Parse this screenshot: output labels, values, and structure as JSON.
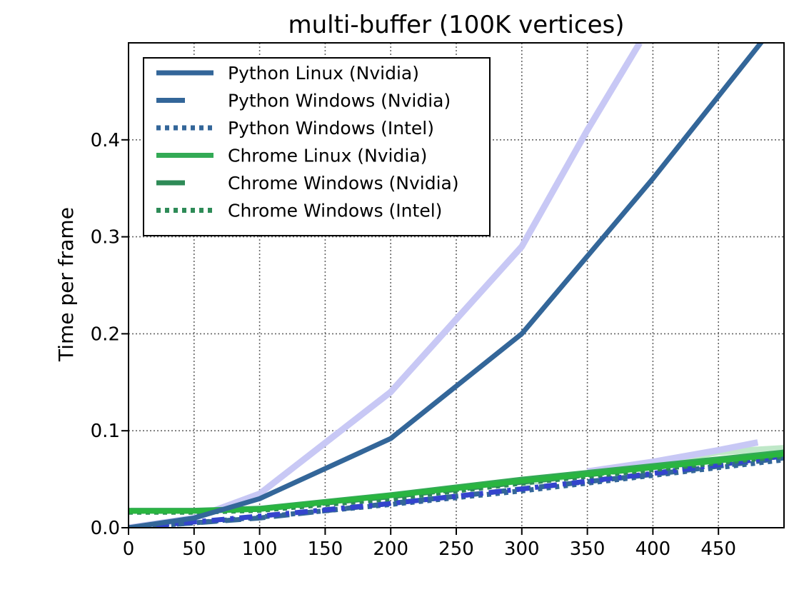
{
  "chart_data": {
    "type": "line",
    "title": "multi-buffer (100K vertices)",
    "xlabel": "",
    "ylabel": "Time per frame",
    "xlim": [
      0,
      500
    ],
    "ylim": [
      0,
      0.5
    ],
    "xticks": [
      0,
      50,
      100,
      150,
      200,
      250,
      300,
      350,
      400,
      450
    ],
    "xtick_labels": [
      "0",
      "50",
      "100",
      "150",
      "200",
      "250",
      "300",
      "350",
      "400",
      "450"
    ],
    "yticks": [
      0.0,
      0.1,
      0.2,
      0.3,
      0.4
    ],
    "ytick_labels": [
      "0.0",
      "0.1",
      "0.2",
      "0.3",
      "0.4"
    ],
    "grid": true,
    "legend_position": "top-left",
    "series": [
      {
        "name": "Python Linux (Nvidia)",
        "color": "#336699",
        "style": "solid",
        "x": [
          0,
          50,
          100,
          200,
          300,
          400,
          500
        ],
        "y": [
          0.0,
          0.01,
          0.03,
          0.092,
          0.2,
          0.36,
          0.53
        ]
      },
      {
        "name": "Python Windows (Nvidia)",
        "color": "#336699",
        "style": "dashed",
        "x": [
          0,
          50,
          100,
          200,
          300,
          400,
          500
        ],
        "y": [
          0.0,
          0.005,
          0.01,
          0.025,
          0.04,
          0.055,
          0.072
        ]
      },
      {
        "name": "Python Windows (Intel)",
        "color": "#336699",
        "style": "dotted",
        "x": [
          0,
          50,
          100,
          200,
          300,
          400,
          500
        ],
        "y": [
          0.0,
          0.005,
          0.011,
          0.024,
          0.038,
          0.054,
          0.07
        ]
      },
      {
        "name": "Chrome Linux (Nvidia)",
        "color": "#33aa55",
        "style": "solid",
        "x": [
          0,
          50,
          100,
          200,
          300,
          400,
          500
        ],
        "y": [
          0.018,
          0.018,
          0.02,
          0.034,
          0.05,
          0.064,
          0.078
        ]
      },
      {
        "name": "Chrome Windows (Nvidia)",
        "color": "#2e8b57",
        "style": "dashed",
        "x": [
          0,
          50,
          100,
          200,
          300,
          400,
          500
        ],
        "y": [
          0.017,
          0.017,
          0.019,
          0.032,
          0.047,
          0.062,
          0.078
        ]
      },
      {
        "name": "Chrome Windows (Intel)",
        "color": "#2e8b57",
        "style": "dotted",
        "x": [
          0,
          50,
          100,
          200,
          300,
          400,
          500
        ],
        "y": [
          0.016,
          0.016,
          0.018,
          0.03,
          0.046,
          0.06,
          0.074
        ]
      },
      {
        "name": "",
        "color": "#c8c8f5",
        "style": "solid",
        "x": [
          0,
          50,
          100,
          200,
          300,
          350,
          390
        ],
        "y": [
          0.0,
          0.01,
          0.035,
          0.14,
          0.29,
          0.41,
          0.5
        ]
      },
      {
        "name": "",
        "color": "#3344cc",
        "style": "dashdot",
        "x": [
          0,
          50,
          100,
          200,
          300,
          400,
          500
        ],
        "y": [
          0.0,
          0.006,
          0.012,
          0.025,
          0.04,
          0.056,
          0.074
        ]
      },
      {
        "name": "",
        "color": "#bfe8c8",
        "style": "solid",
        "x": [
          300,
          350,
          400,
          450,
          500
        ],
        "y": [
          0.046,
          0.056,
          0.066,
          0.078,
          0.082
        ]
      },
      {
        "name": "",
        "color": "#c8c8f5",
        "style": "solid",
        "x": [
          350,
          400,
          450,
          480
        ],
        "y": [
          0.058,
          0.068,
          0.08,
          0.088
        ]
      },
      {
        "name": "",
        "color": "#2ab540",
        "style": "solid",
        "x": [
          0,
          50,
          100,
          200,
          300,
          400,
          500
        ],
        "y": [
          0.017,
          0.017,
          0.019,
          0.033,
          0.048,
          0.062,
          0.076
        ]
      }
    ]
  }
}
